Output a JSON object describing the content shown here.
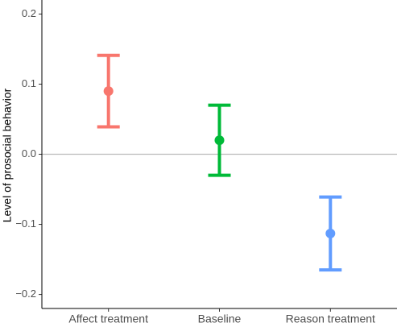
{
  "chart_data": {
    "type": "errorpoint",
    "y_label": "Level of prosocial behavior",
    "categories": [
      "Affect treatment",
      "Baseline",
      "Reason treatment"
    ],
    "values": [
      0.09,
      0.02,
      -0.113
    ],
    "errors": [
      0.051,
      0.05,
      0.052
    ],
    "colors": [
      "#F8766D",
      "#00BA38",
      "#619CFF"
    ],
    "ylim": [
      -0.22,
      0.22
    ],
    "yticks": [
      {
        "value": -0.2,
        "label": "−0.2"
      },
      {
        "value": -0.1,
        "label": "−0.1"
      },
      {
        "value": 0,
        "label": "0.0"
      },
      0.1,
      0.2
    ],
    "hline": 0
  }
}
